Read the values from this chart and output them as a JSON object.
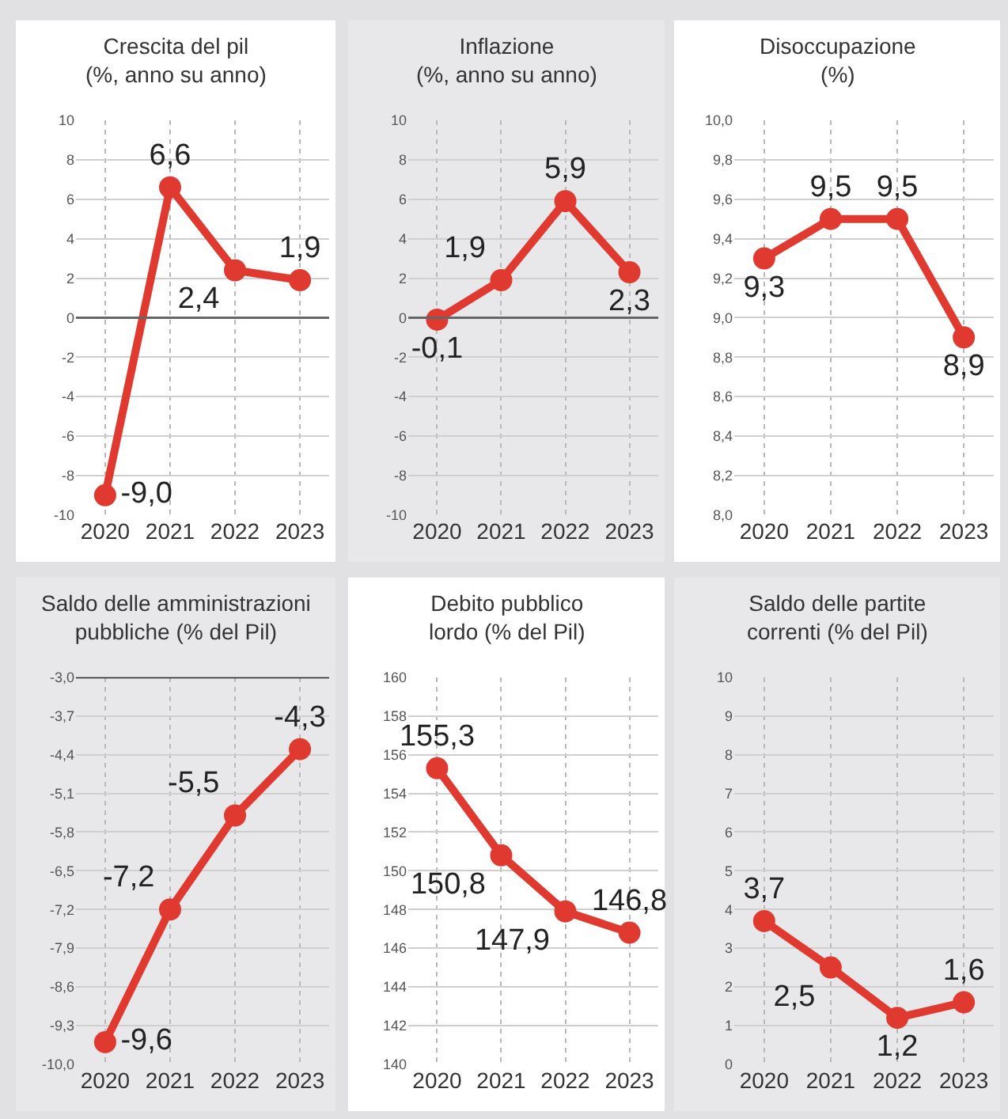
{
  "chart_data": [
    {
      "type": "line",
      "title": "Crescita del pil\n(%, anno su anno)",
      "categories": [
        "2020",
        "2021",
        "2022",
        "2023"
      ],
      "series": [
        {
          "color": "#e03a30",
          "values": [
            -9.0,
            6.6,
            2.4,
            1.9
          ],
          "value_labels": [
            "-9,0",
            "6,6",
            "2,4",
            "1,9"
          ]
        }
      ],
      "ylim": [
        -10,
        10
      ],
      "yticks": [
        -10,
        -8,
        -6,
        -4,
        -2,
        0,
        2,
        4,
        6,
        8,
        10
      ],
      "grid": true,
      "marker": "circle",
      "line_style": "solid",
      "ref_lines": [
        {
          "axis": "y",
          "value": 0,
          "color": "#666666"
        }
      ]
    },
    {
      "type": "line",
      "title": "Inflazione\n(%, anno su anno)",
      "categories": [
        "2020",
        "2021",
        "2022",
        "2023"
      ],
      "series": [
        {
          "color": "#e03a30",
          "values": [
            -0.1,
            1.9,
            5.9,
            2.3
          ],
          "value_labels": [
            "-0,1",
            "1,9",
            "5,9",
            "2,3"
          ]
        }
      ],
      "ylim": [
        -10,
        10
      ],
      "yticks": [
        -10,
        -8,
        -6,
        -4,
        -2,
        0,
        2,
        4,
        6,
        8,
        10
      ],
      "grid": true,
      "marker": "circle",
      "line_style": "solid",
      "ref_lines": [
        {
          "axis": "y",
          "value": 0,
          "color": "#666666"
        }
      ]
    },
    {
      "type": "line",
      "title": "Disoccupazione\n(%)",
      "categories": [
        "2020",
        "2021",
        "2022",
        "2023"
      ],
      "series": [
        {
          "color": "#e03a30",
          "values": [
            9.3,
            9.5,
            9.5,
            8.9
          ],
          "value_labels": [
            "9,3",
            "9,5",
            "9,5",
            "8,9"
          ]
        }
      ],
      "ylim": [
        8.0,
        10.0
      ],
      "yticks": [
        {
          "value": 8.0,
          "label": "8,0"
        },
        {
          "value": 8.2,
          "label": "8,2"
        },
        {
          "value": 8.4,
          "label": "8,4"
        },
        {
          "value": 8.6,
          "label": "8,6"
        },
        {
          "value": 8.8,
          "label": "8,8"
        },
        {
          "value": 9.0,
          "label": "9,0"
        },
        {
          "value": 9.2,
          "label": "9,2"
        },
        {
          "value": 9.4,
          "label": "9,4"
        },
        {
          "value": 9.6,
          "label": "9,6"
        },
        {
          "value": 9.8,
          "label": "9,8"
        },
        {
          "value": 10.0,
          "label": "10,0"
        }
      ],
      "grid": true,
      "marker": "circle",
      "line_style": "solid"
    },
    {
      "type": "line",
      "title": "Saldo delle amministrazioni\npubbliche (% del Pil)",
      "categories": [
        "2020",
        "2021",
        "2022",
        "2023"
      ],
      "series": [
        {
          "color": "#e03a30",
          "values": [
            -9.6,
            -7.2,
            -5.5,
            -4.3
          ],
          "value_labels": [
            "-9,6",
            "-7,2",
            "-5,5",
            "-4,3"
          ]
        }
      ],
      "ylim": [
        -10.0,
        -3.0
      ],
      "yticks": [
        {
          "value": -10.0,
          "label": "-10,0"
        },
        {
          "value": -9.3,
          "label": "-9,3"
        },
        {
          "value": -8.6,
          "label": "-8,6"
        },
        {
          "value": -7.9,
          "label": "-7,9"
        },
        {
          "value": -7.2,
          "label": "-7,2"
        },
        {
          "value": -6.5,
          "label": "-6,5"
        },
        {
          "value": -5.8,
          "label": "-5,8"
        },
        {
          "value": -5.1,
          "label": "-5,1"
        },
        {
          "value": -4.4,
          "label": "-4,4"
        },
        {
          "value": -3.7,
          "label": "-3,7"
        },
        {
          "value": -3.0,
          "label": "-3,0"
        }
      ],
      "grid": true,
      "marker": "circle",
      "line_style": "solid",
      "ref_lines": [
        {
          "axis": "y",
          "value": -3.0,
          "color": "#222222"
        }
      ]
    },
    {
      "type": "line",
      "title": "Debito pubblico\nlordo (% del Pil)",
      "categories": [
        "2020",
        "2021",
        "2022",
        "2023"
      ],
      "series": [
        {
          "color": "#e03a30",
          "values": [
            155.3,
            150.8,
            147.9,
            146.8
          ],
          "value_labels": [
            "155,3",
            "150,8",
            "147,9",
            "146,8"
          ]
        }
      ],
      "ylim": [
        140,
        160
      ],
      "yticks": [
        140,
        142,
        144,
        146,
        148,
        150,
        152,
        154,
        156,
        158,
        160
      ],
      "grid": true,
      "marker": "circle",
      "line_style": "solid"
    },
    {
      "type": "line",
      "title": "Saldo delle partite\ncorrenti (% del Pil)",
      "categories": [
        "2020",
        "2021",
        "2022",
        "2023"
      ],
      "series": [
        {
          "color": "#e03a30",
          "values": [
            3.7,
            2.5,
            1.2,
            1.6
          ],
          "value_labels": [
            "3,7",
            "2,5",
            "1,2",
            "1,6"
          ]
        }
      ],
      "ylim": [
        0,
        10
      ],
      "yticks": [
        0,
        1,
        2,
        3,
        4,
        5,
        6,
        7,
        8,
        9,
        10
      ],
      "grid": true,
      "marker": "circle",
      "line_style": "solid"
    }
  ]
}
